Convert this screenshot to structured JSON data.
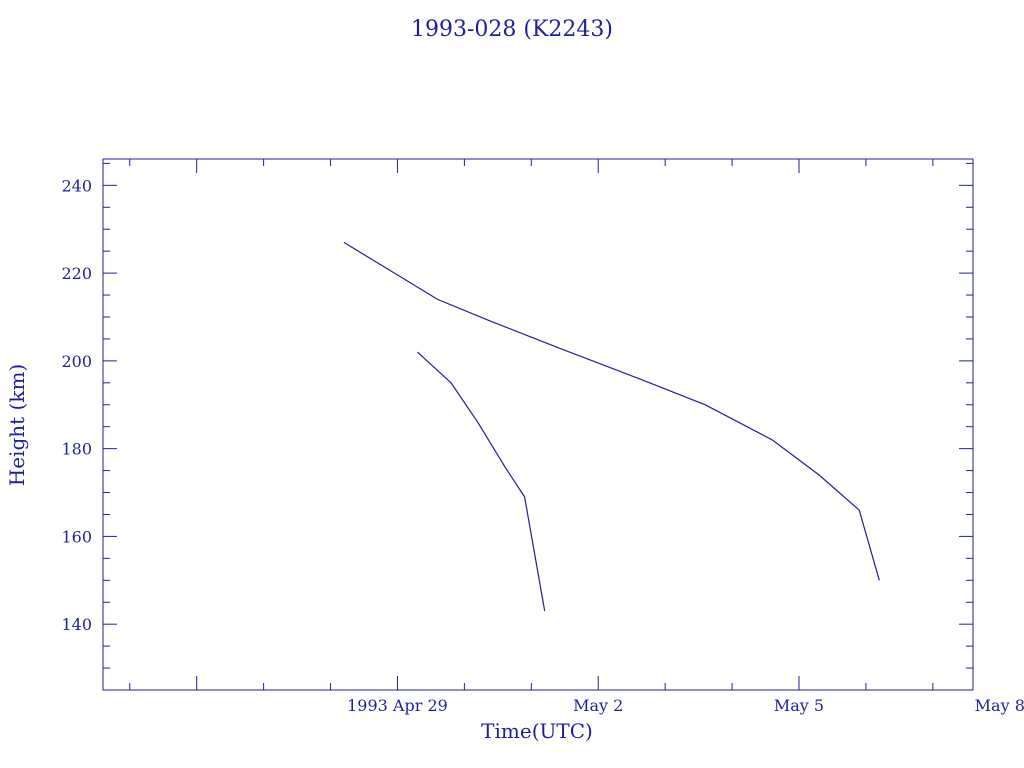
{
  "chart_data": {
    "type": "line",
    "title": "1993-028 (K2243)",
    "xlabel": "Time(UTC)",
    "ylabel": "Height (km)",
    "x_unit": "days",
    "xlim": [
      -4.4,
      8.6
    ],
    "ylim": [
      125,
      246
    ],
    "x_ticks": [
      {
        "label": "1993 Apr 29",
        "value": 0
      },
      {
        "label": "May  2",
        "value": 3
      },
      {
        "label": "May  5",
        "value": 6
      },
      {
        "label": "May  8",
        "value": 9
      }
    ],
    "y_ticks": [
      140,
      160,
      180,
      200,
      220,
      240
    ],
    "grid": false,
    "series": [
      {
        "x": [
          -0.8,
          0.6,
          1.4,
          2.4,
          3.6,
          4.6,
          5.6,
          6.3,
          6.9,
          7.2
        ],
        "y": [
          227,
          214,
          209,
          203,
          196,
          190,
          182,
          174,
          166,
          150
        ]
      },
      {
        "x": [
          0.3,
          0.8,
          1.2,
          1.6,
          1.9,
          2.2
        ],
        "y": [
          202,
          195,
          186,
          176,
          169,
          143
        ]
      }
    ]
  }
}
